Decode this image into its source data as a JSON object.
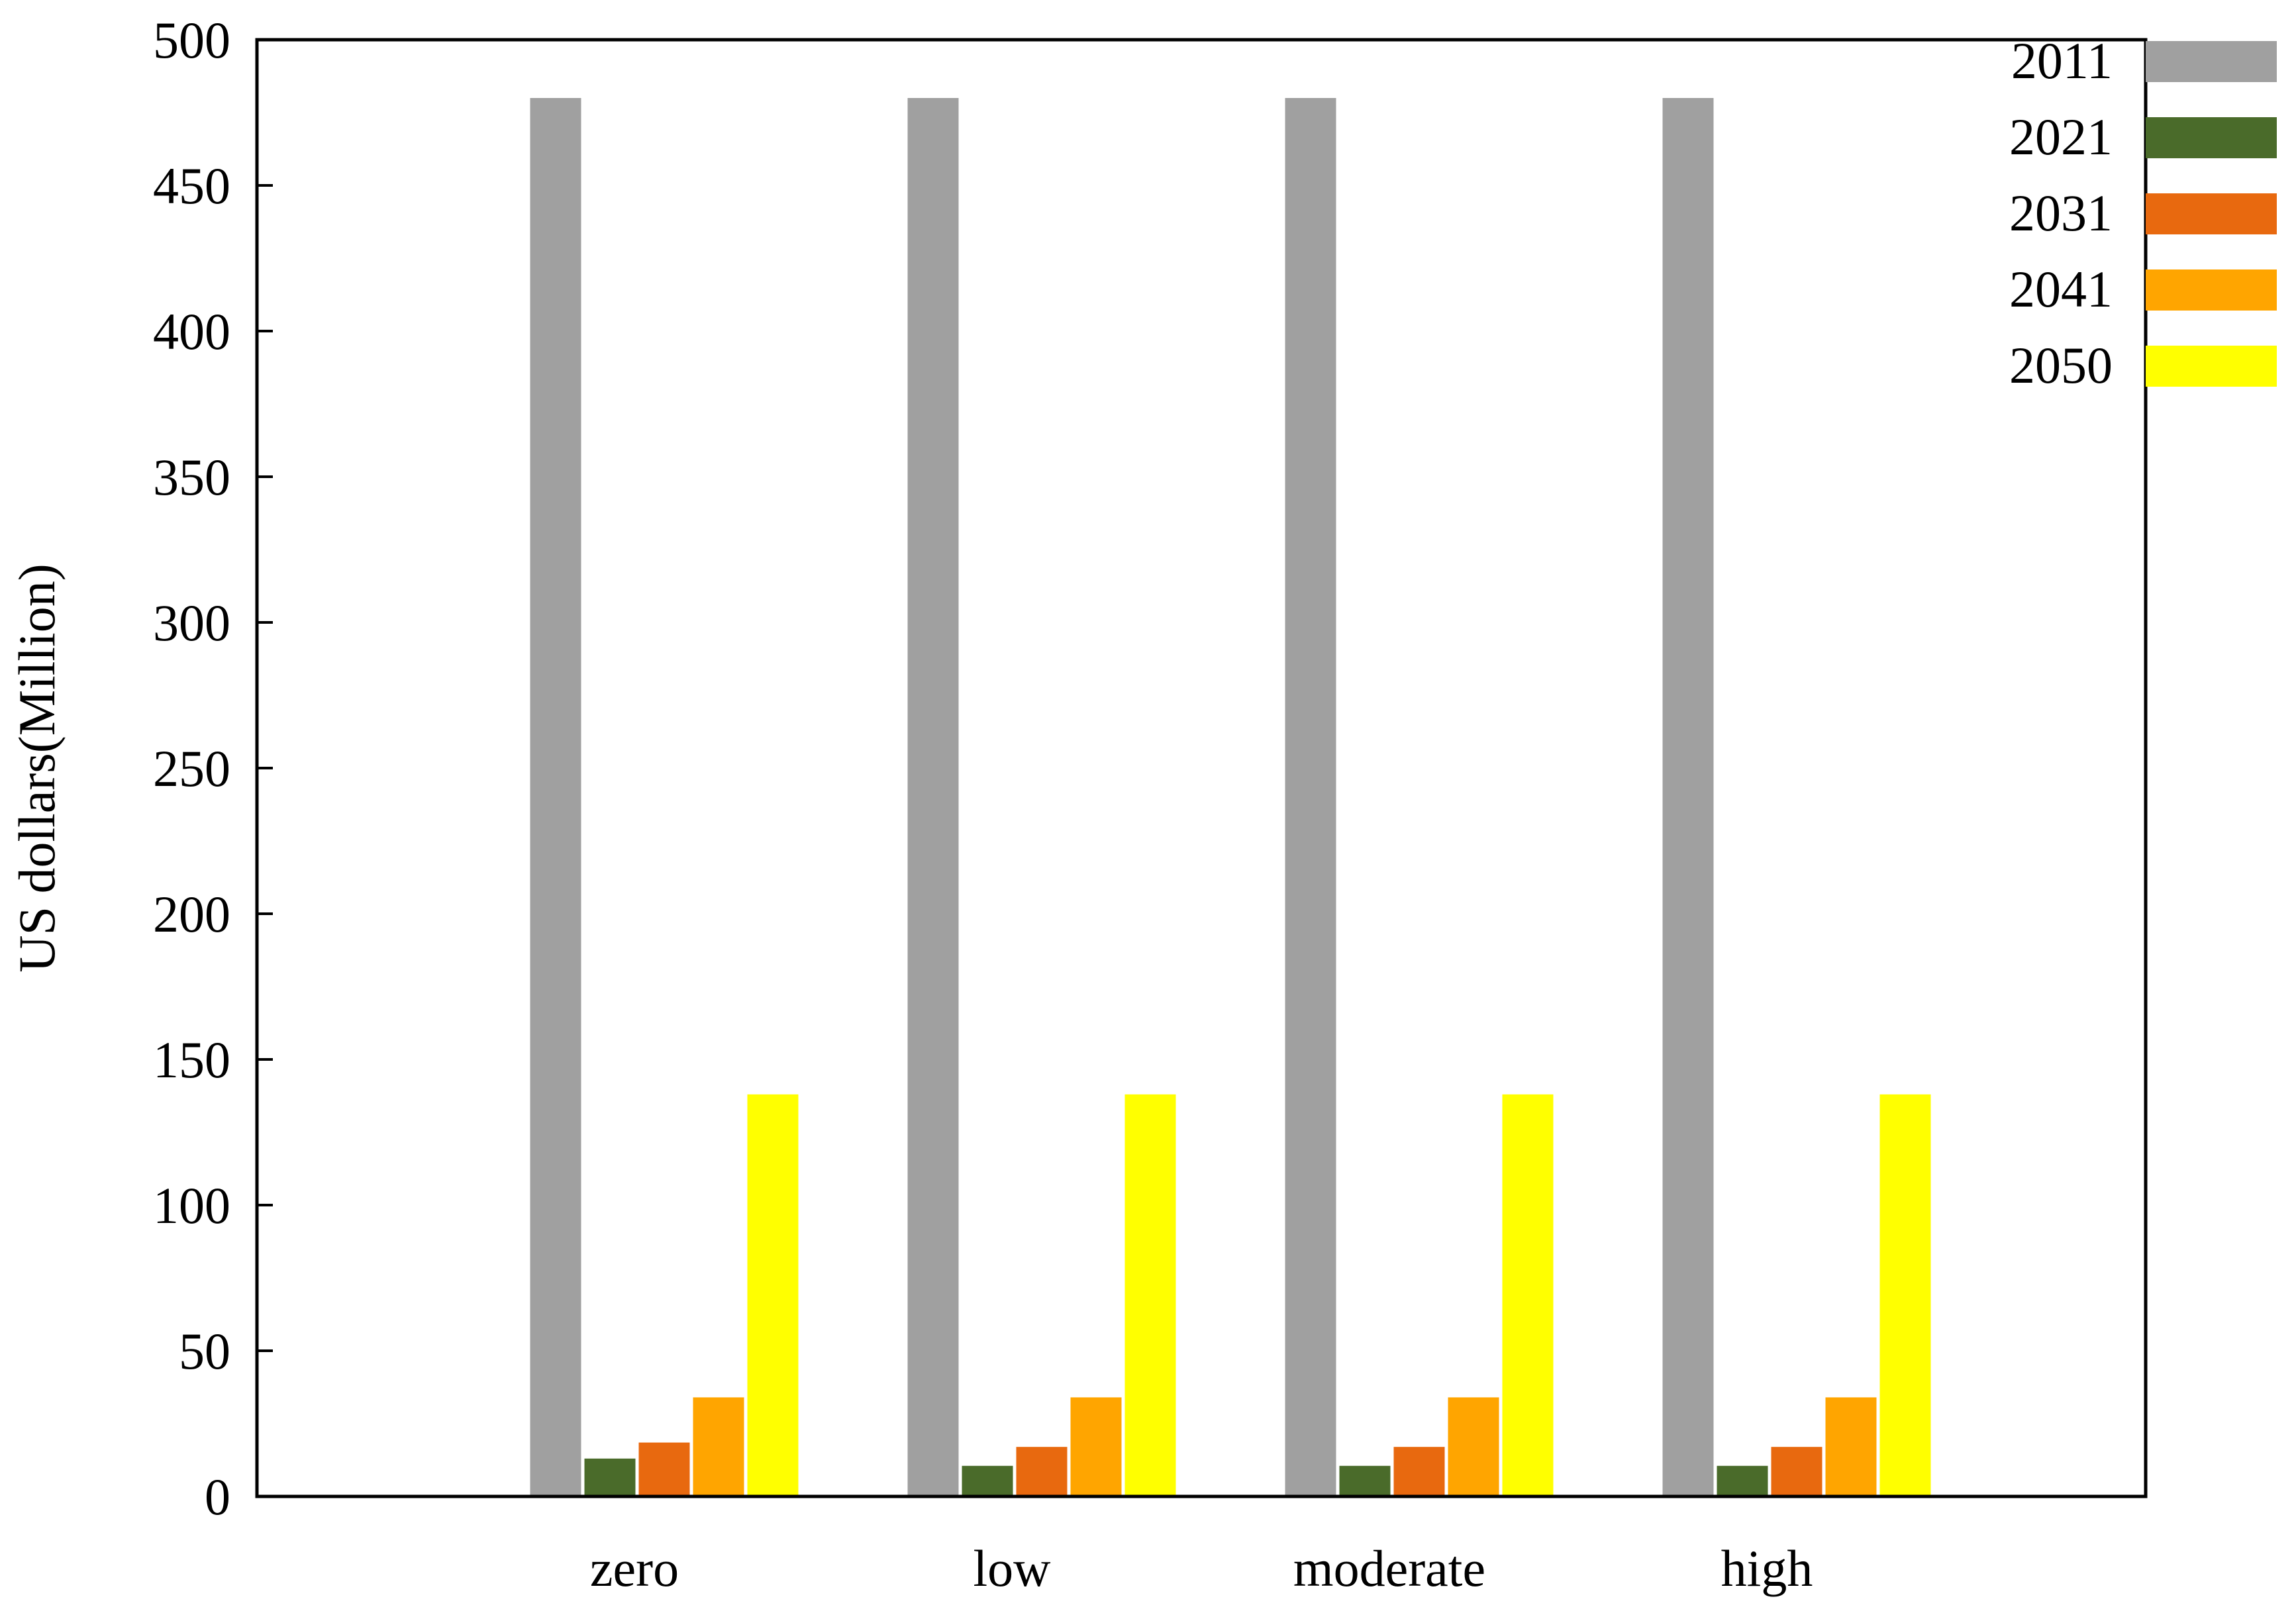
{
  "chart_data": {
    "type": "bar",
    "title": "",
    "xlabel": "",
    "ylabel": "US dollars(Million)",
    "ylim": [
      0,
      500
    ],
    "yticks": [
      0,
      50,
      100,
      150,
      200,
      250,
      300,
      350,
      400,
      450,
      500
    ],
    "categories": [
      "zero",
      "low",
      "moderate",
      "high"
    ],
    "series": [
      {
        "name": "2011",
        "color": "#a0a0a0",
        "values": [
          480,
          480,
          480,
          480
        ]
      },
      {
        "name": "2021",
        "color": "#4a6b2a",
        "values": [
          13,
          10.5,
          10.5,
          10.5
        ]
      },
      {
        "name": "2031",
        "color": "#e8690f",
        "values": [
          18.5,
          17,
          17,
          17
        ]
      },
      {
        "name": "2041",
        "color": "#ffa500",
        "values": [
          34,
          34,
          34,
          34
        ]
      },
      {
        "name": "2050",
        "color": "#ffff00",
        "values": [
          138,
          138,
          138,
          138
        ]
      }
    ],
    "grid": false,
    "legend": "top-right"
  }
}
